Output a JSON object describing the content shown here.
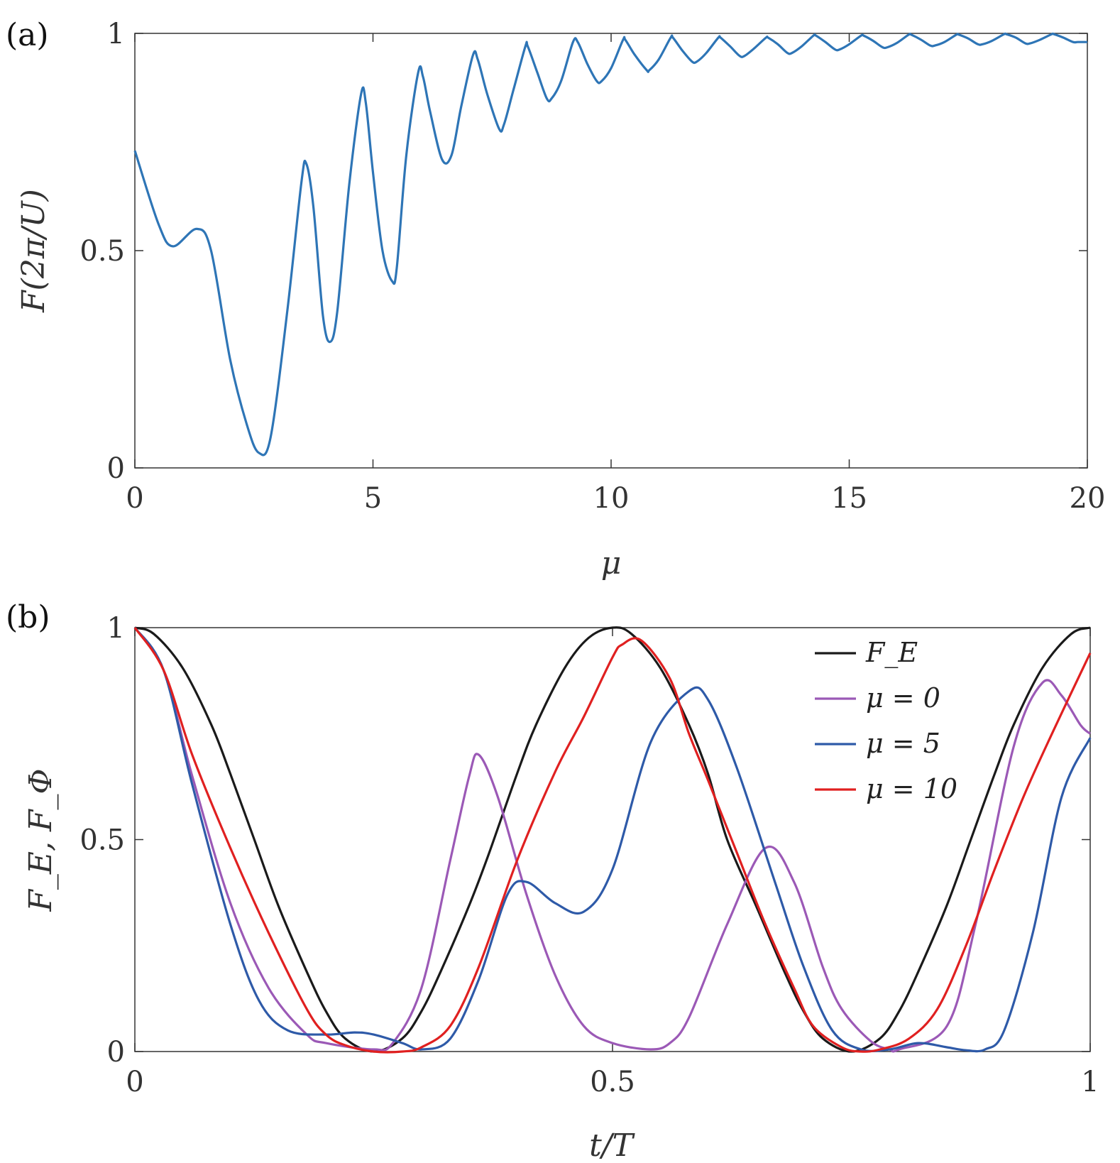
{
  "chart_data": [
    {
      "panel_label": "(a)",
      "type": "line",
      "xlabel": "μ",
      "ylabel": "F(2π/U)",
      "xlim": [
        0,
        20
      ],
      "ylim": [
        0,
        1
      ],
      "xticks": [
        "0",
        "5",
        "10",
        "15",
        "20"
      ],
      "yticks": [
        "0",
        "0.5",
        "1"
      ],
      "grid": false,
      "series": [
        {
          "color": "#2e75b6",
          "x": [
            0,
            0.5,
            0.8,
            1.3,
            1.6,
            2.0,
            2.35,
            2.6,
            2.85,
            3.2,
            3.5,
            3.6,
            3.75,
            3.95,
            4.1,
            4.25,
            4.5,
            4.75,
            4.85,
            5.0,
            5.2,
            5.4,
            5.5,
            5.7,
            5.95,
            6.05,
            6.2,
            6.45,
            6.65,
            6.85,
            7.1,
            7.2,
            7.4,
            7.65,
            7.75,
            7.95,
            8.2,
            8.25,
            8.45,
            8.65,
            8.75,
            8.95,
            9.2,
            9.3,
            9.5,
            9.7,
            9.8,
            10.0,
            10.25,
            10.3,
            10.5,
            10.75,
            10.8,
            11.0,
            11.25,
            11.3,
            11.5,
            11.7,
            11.8,
            12.0,
            12.25,
            12.3,
            12.5,
            12.7,
            12.8,
            13.0,
            13.25,
            13.3,
            13.5,
            13.7,
            13.8,
            14.0,
            14.25,
            14.3,
            14.5,
            14.7,
            14.8,
            15.0,
            15.25,
            15.3,
            15.5,
            15.7,
            15.8,
            16.0,
            16.25,
            16.3,
            16.5,
            16.7,
            16.8,
            17.0,
            17.25,
            17.3,
            17.5,
            17.7,
            17.8,
            18.0,
            18.25,
            18.3,
            18.5,
            18.7,
            18.8,
            19.0,
            19.25,
            19.3,
            19.5,
            19.7,
            19.8,
            20.0
          ],
          "y": [
            0.73,
            0.56,
            0.51,
            0.55,
            0.5,
            0.25,
            0.1,
            0.035,
            0.07,
            0.36,
            0.66,
            0.7,
            0.6,
            0.35,
            0.29,
            0.36,
            0.65,
            0.86,
            0.84,
            0.68,
            0.5,
            0.43,
            0.46,
            0.72,
            0.91,
            0.9,
            0.82,
            0.71,
            0.72,
            0.83,
            0.95,
            0.94,
            0.86,
            0.78,
            0.79,
            0.87,
            0.97,
            0.97,
            0.91,
            0.85,
            0.85,
            0.89,
            0.98,
            0.98,
            0.93,
            0.89,
            0.89,
            0.92,
            0.985,
            0.985,
            0.95,
            0.915,
            0.915,
            0.94,
            0.99,
            0.99,
            0.96,
            0.935,
            0.935,
            0.955,
            0.99,
            0.99,
            0.97,
            0.948,
            0.948,
            0.965,
            0.99,
            0.99,
            0.975,
            0.955,
            0.955,
            0.97,
            0.995,
            0.995,
            0.98,
            0.963,
            0.963,
            0.975,
            0.995,
            0.995,
            0.983,
            0.968,
            0.968,
            0.978,
            0.997,
            0.997,
            0.986,
            0.972,
            0.972,
            0.98,
            0.997,
            0.997,
            0.988,
            0.975,
            0.975,
            0.983,
            0.998,
            0.998,
            0.99,
            0.977,
            0.977,
            0.985,
            0.998,
            0.998,
            0.99,
            0.98,
            0.98,
            0.98
          ]
        }
      ]
    },
    {
      "panel_label": "(b)",
      "type": "line",
      "xlabel": "t/T",
      "ylabel": "F_E, F_Φ",
      "xlim": [
        0,
        1
      ],
      "ylim": [
        0,
        1
      ],
      "xticks": [
        "0",
        "0.5",
        "1"
      ],
      "yticks": [
        "0",
        "0.5",
        "1"
      ],
      "grid": false,
      "legend_position": "top-right",
      "series": [
        {
          "name": "F_E",
          "color": "#1a1a1a",
          "x": [
            0,
            0.02,
            0.05,
            0.08,
            0.1,
            0.125,
            0.15,
            0.18,
            0.2,
            0.22,
            0.25,
            0.28,
            0.3,
            0.32,
            0.35,
            0.37,
            0.4,
            0.42,
            0.45,
            0.475,
            0.5,
            0.52,
            0.55,
            0.58,
            0.6,
            0.62,
            0.65,
            0.68,
            0.7,
            0.72,
            0.75,
            0.78,
            0.8,
            0.82,
            0.85,
            0.875,
            0.9,
            0.92,
            0.95,
            0.98,
            1.0
          ],
          "y": [
            1.0,
            0.985,
            0.905,
            0.771,
            0.655,
            0.5,
            0.345,
            0.188,
            0.095,
            0.031,
            0.0,
            0.031,
            0.095,
            0.188,
            0.345,
            0.463,
            0.655,
            0.771,
            0.905,
            0.976,
            1.0,
            0.985,
            0.905,
            0.771,
            0.655,
            0.5,
            0.345,
            0.188,
            0.095,
            0.031,
            0.0,
            0.031,
            0.095,
            0.188,
            0.345,
            0.5,
            0.655,
            0.771,
            0.905,
            0.985,
            1.0
          ]
        },
        {
          "name": "μ = 0",
          "color": "#9b59b6",
          "x": [
            0,
            0.03,
            0.06,
            0.1,
            0.14,
            0.18,
            0.2,
            0.25,
            0.27,
            0.3,
            0.33,
            0.35,
            0.36,
            0.38,
            0.41,
            0.44,
            0.47,
            0.5,
            0.54,
            0.56,
            0.58,
            0.62,
            0.66,
            0.69,
            0.72,
            0.74,
            0.77,
            0.79,
            0.8,
            0.85,
            0.88,
            0.92,
            0.95,
            0.97,
            0.99,
            1.0
          ],
          "y": [
            1.0,
            0.9,
            0.65,
            0.35,
            0.15,
            0.04,
            0.02,
            0.005,
            0.02,
            0.15,
            0.45,
            0.65,
            0.7,
            0.6,
            0.37,
            0.18,
            0.06,
            0.02,
            0.005,
            0.02,
            0.08,
            0.3,
            0.48,
            0.4,
            0.2,
            0.1,
            0.025,
            0.005,
            0.005,
            0.06,
            0.3,
            0.72,
            0.87,
            0.84,
            0.77,
            0.75
          ]
        },
        {
          "name": "μ = 5",
          "color": "#2e5aa8",
          "x": [
            0,
            0.03,
            0.06,
            0.1,
            0.13,
            0.16,
            0.2,
            0.23,
            0.25,
            0.28,
            0.3,
            0.33,
            0.36,
            0.39,
            0.41,
            0.44,
            0.47,
            0.5,
            0.54,
            0.58,
            0.6,
            0.63,
            0.67,
            0.7,
            0.73,
            0.76,
            0.79,
            0.82,
            0.85,
            0.87,
            0.89,
            0.91,
            0.94,
            0.97,
            1.0
          ],
          "y": [
            1.0,
            0.9,
            0.63,
            0.3,
            0.12,
            0.05,
            0.04,
            0.045,
            0.04,
            0.02,
            0.005,
            0.03,
            0.17,
            0.37,
            0.4,
            0.35,
            0.33,
            0.43,
            0.73,
            0.85,
            0.83,
            0.67,
            0.4,
            0.2,
            0.05,
            0.005,
            0.005,
            0.02,
            0.01,
            0.003,
            0.005,
            0.05,
            0.28,
            0.6,
            0.74
          ]
        },
        {
          "name": "μ = 10",
          "color": "#e02020",
          "x": [
            0,
            0.03,
            0.06,
            0.1,
            0.14,
            0.18,
            0.2,
            0.22,
            0.25,
            0.28,
            0.3,
            0.33,
            0.36,
            0.4,
            0.44,
            0.47,
            0.5,
            0.51,
            0.53,
            0.56,
            0.58,
            0.6,
            0.63,
            0.66,
            0.69,
            0.71,
            0.74,
            0.76,
            0.78,
            0.81,
            0.84,
            0.87,
            0.9,
            0.93,
            0.96,
            1.0
          ],
          "y": [
            1.0,
            0.9,
            0.7,
            0.48,
            0.28,
            0.1,
            0.04,
            0.015,
            0.0,
            0.0,
            0.01,
            0.06,
            0.2,
            0.45,
            0.66,
            0.79,
            0.93,
            0.96,
            0.97,
            0.88,
            0.75,
            0.64,
            0.47,
            0.3,
            0.15,
            0.06,
            0.01,
            0.0,
            0.005,
            0.03,
            0.1,
            0.25,
            0.43,
            0.6,
            0.75,
            0.94
          ]
        }
      ]
    }
  ]
}
